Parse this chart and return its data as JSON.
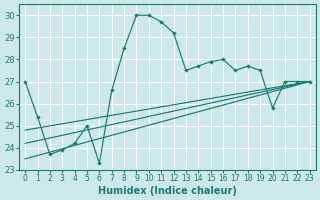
{
  "xlabel": "Humidex (Indice chaleur)",
  "xlim": [
    -0.5,
    23.5
  ],
  "ylim": [
    23,
    30.5
  ],
  "yticks": [
    23,
    24,
    25,
    26,
    27,
    28,
    29,
    30
  ],
  "xticks": [
    0,
    1,
    2,
    3,
    4,
    5,
    6,
    7,
    8,
    9,
    10,
    11,
    12,
    13,
    14,
    15,
    16,
    17,
    18,
    19,
    20,
    21,
    22,
    23
  ],
  "bg_color": "#cde8e8",
  "line_color": "#1a7a6e",
  "grid_color": "#b8d8d8",
  "main_line": {
    "x": [
      0,
      1,
      2,
      3,
      4,
      5,
      6,
      7,
      8,
      9,
      10,
      11,
      12,
      13,
      14,
      15,
      16,
      17,
      18,
      19,
      20,
      21,
      22,
      23
    ],
    "y": [
      27.0,
      25.4,
      23.7,
      23.9,
      24.2,
      25.0,
      23.3,
      26.6,
      28.5,
      30.0,
      30.0,
      29.7,
      29.2,
      27.5,
      27.7,
      27.9,
      28.0,
      27.5,
      27.7,
      27.5,
      25.8,
      27.0,
      27.0,
      27.0
    ]
  },
  "trend_lines": [
    {
      "x": [
        0,
        23
      ],
      "y": [
        23.5,
        27.0
      ]
    },
    {
      "x": [
        0,
        23
      ],
      "y": [
        24.2,
        27.0
      ]
    },
    {
      "x": [
        0,
        23
      ],
      "y": [
        24.8,
        27.0
      ]
    }
  ]
}
